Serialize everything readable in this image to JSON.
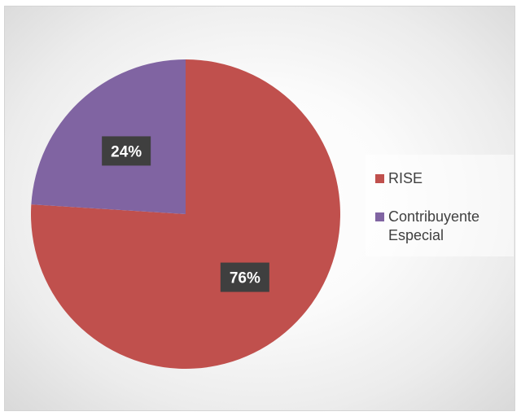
{
  "chart_data": {
    "type": "pie",
    "title": "",
    "series": [
      {
        "name": "RISE",
        "value": 76,
        "label": "76%",
        "color": "#C0504D"
      },
      {
        "name": "Contribuyente\nEspecial",
        "value": 24,
        "label": "24%",
        "color": "#8064A2"
      }
    ],
    "legend_position": "right"
  },
  "legend": {
    "items": [
      {
        "label": "RISE",
        "color": "#C0504D"
      },
      {
        "label": "Contribuyente\nEspecial",
        "color": "#8064A2"
      }
    ]
  }
}
